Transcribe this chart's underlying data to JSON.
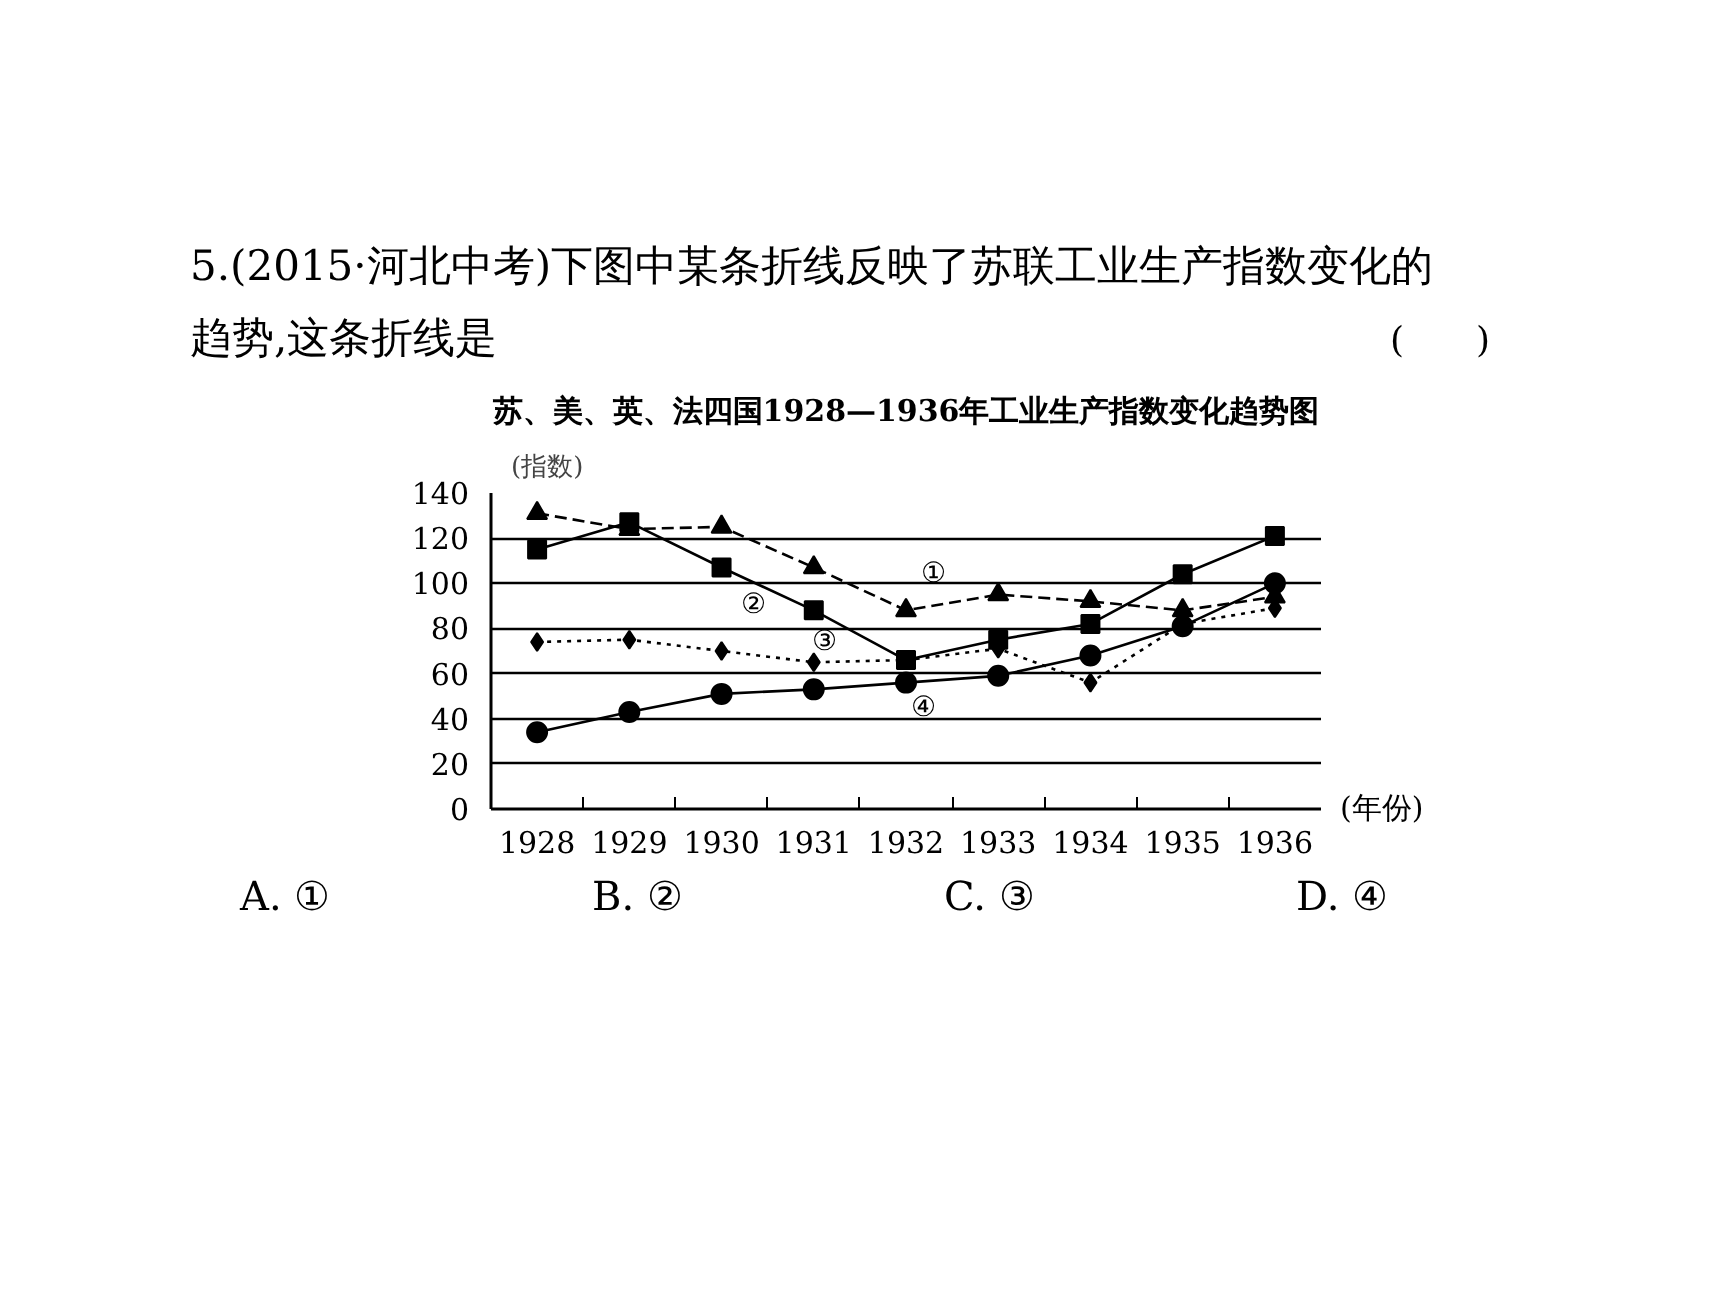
{
  "chart_data": {
    "type": "line",
    "title": "苏、美、英、法四国1928—1936年工业生产指数变化趋势图",
    "ylabel": "(指数)",
    "xlabel": "(年份)",
    "annotations": [
      "5.(2015·河北中考)下图中某条折线反映了苏联工业生产指数变化的趋势,这条折线是",
      "(　　)",
      "A. ①",
      "B. ②",
      "C. ③",
      "D. ④"
    ],
    "categories": [
      "1928",
      "1929",
      "1930",
      "1931",
      "1932",
      "1933",
      "1934",
      "1935",
      "1936"
    ],
    "series": [
      {
        "name": "①",
        "color": "#000000",
        "marker": "triangle",
        "line_style": "dashed",
        "values": [
          131,
          124,
          125,
          107,
          88,
          95,
          92,
          88,
          94
        ]
      },
      {
        "name": "②",
        "color": "#000000",
        "marker": "square",
        "line_style": "solid",
        "values": [
          115,
          127,
          107,
          88,
          66,
          75,
          82,
          104,
          121
        ]
      },
      {
        "name": "③",
        "color": "#000000",
        "marker": "diamond",
        "line_style": "dotted",
        "values": [
          74,
          75,
          70,
          65,
          66,
          71,
          56,
          82,
          89
        ]
      },
      {
        "name": "④",
        "color": "#000000",
        "marker": "circle",
        "line_style": "solid",
        "values": [
          34,
          43,
          51,
          53,
          56,
          59,
          68,
          81,
          100
        ]
      }
    ],
    "ylim": [
      0,
      140
    ],
    "yticks": [
      0,
      20,
      40,
      60,
      80,
      100,
      120,
      140
    ],
    "grid": "y"
  }
}
